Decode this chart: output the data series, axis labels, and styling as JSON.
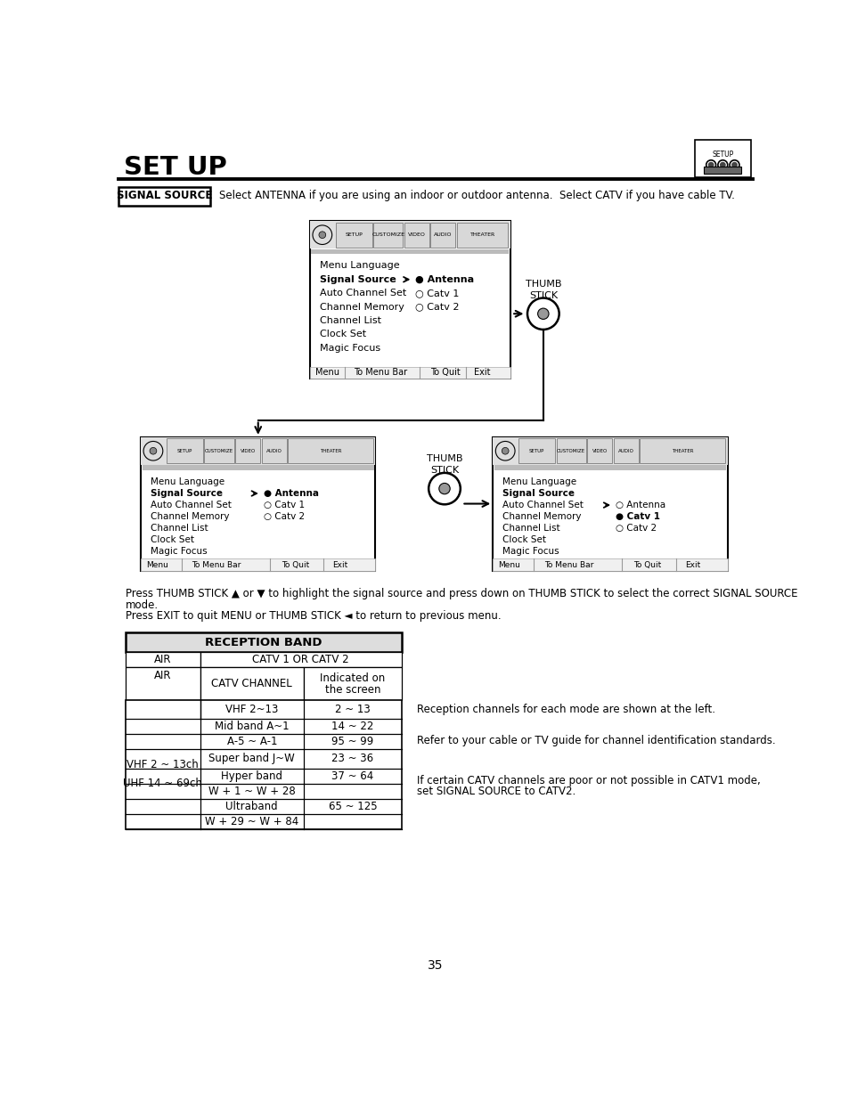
{
  "title": "SET UP",
  "page_number": "35",
  "bg_color": "#ffffff",
  "signal_source_label": "SIGNAL SOURCE",
  "signal_source_text": "Select ANTENNA if you are using an indoor or outdoor antenna.  Select CATV if you have cable TV.",
  "press_text1": "Press THUMB STICK ▲ or ▼ to highlight the signal source and press down on THUMB STICK to select the correct SIGNAL SOURCE",
  "press_text1b": "mode.",
  "press_text2": "Press EXIT to quit MENU or THUMB STICK ◄ to return to previous menu.",
  "reception_title": "RECEPTION BAND",
  "catv_header": "CATV 1 OR CATV 2",
  "col2_header": "CATV CHANNEL",
  "col3_header1": "Indicated on",
  "col3_header2": "the screen",
  "air_label": "AIR",
  "right_text1": "Reception channels for each mode are shown at the left.",
  "right_text2": "Refer to your cable or TV guide for channel identification standards.",
  "right_text3a": "If certain CATV channels are poor or not possible in CATV1 mode,",
  "right_text3b": "set SIGNAL SOURCE to CATV2.",
  "menu_items": [
    "Menu Language",
    "Signal Source",
    "Auto Channel Set",
    "Channel Memory",
    "Channel List",
    "Clock Set",
    "Magic Focus"
  ],
  "antenna_options": [
    "Antenna",
    "Catv 1",
    "Catv 2"
  ],
  "bot_items": [
    "Menu",
    "To Menu Bar",
    "To Quit",
    "Exit"
  ],
  "tabs": [
    "SETUP",
    "CUSTOMIZE",
    "VIDEO",
    "AUDIO",
    "THEATER"
  ]
}
